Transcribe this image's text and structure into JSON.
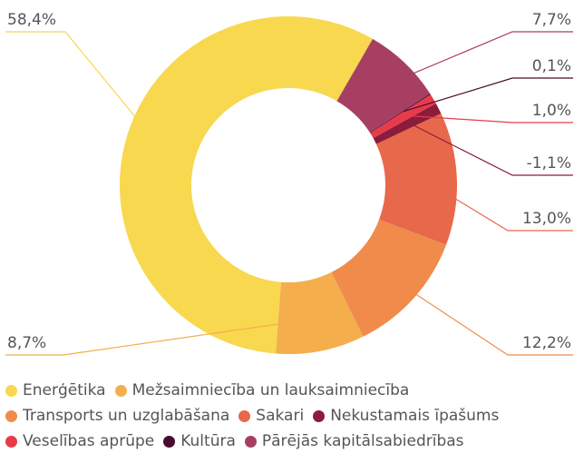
{
  "chart_data": {
    "type": "donut",
    "categories": [
      "Enerģētika",
      "Mežsaimniecība un lauksaimniecība",
      "Transports un uzglabāšana",
      "Sakari",
      "Nekustamais īpašums",
      "Veselības aprūpe",
      "Kultūra",
      "Pārējās kapitālsabiedrības"
    ],
    "values": [
      58.4,
      8.7,
      12.2,
      13.0,
      -1.1,
      1.0,
      0.1,
      7.7
    ],
    "value_labels": [
      "58,4%",
      "8,7%",
      "12,2%",
      "13,0%",
      "-1,1%",
      "1,0%",
      "0,1%",
      "7,7%"
    ],
    "colors": [
      "#f7d84f",
      "#f4ae4c",
      "#f08b4b",
      "#e7684a",
      "#8c1c3b",
      "#e83b4a",
      "#4a0b2f",
      "#a73f63"
    ],
    "legend": "bottom"
  }
}
